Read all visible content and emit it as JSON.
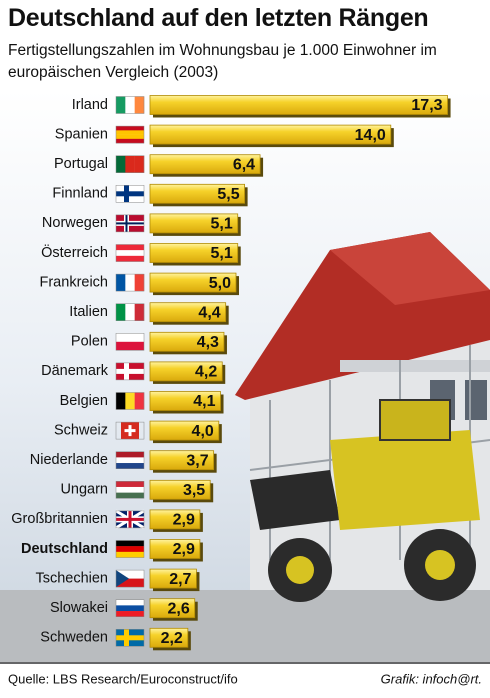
{
  "chart_data": {
    "type": "barh",
    "title": "Deutschland auf den letzten Rängen",
    "subtitle": "Fertigstellungszahlen im Wohnungsbau je 1.000 Einwohner im europäischen Vergleich (2003)",
    "categories": [
      "Irland",
      "Spanien",
      "Portugal",
      "Finnland",
      "Norwegen",
      "Österreich",
      "Frankreich",
      "Italien",
      "Polen",
      "Dänemark",
      "Belgien",
      "Schweiz",
      "Niederlande",
      "Ungarn",
      "Großbritannien",
      "Deutschland",
      "Tschechien",
      "Slowakei",
      "Schweden"
    ],
    "values": [
      17.3,
      14.0,
      6.4,
      5.5,
      5.1,
      5.1,
      5.0,
      4.4,
      4.3,
      4.2,
      4.1,
      4.0,
      3.7,
      3.5,
      2.9,
      2.9,
      2.7,
      2.6,
      2.2
    ],
    "value_labels": [
      "17,3",
      "14,0",
      "6,4",
      "5,5",
      "5,1",
      "5,1",
      "5,0",
      "4,4",
      "4,3",
      "4,2",
      "4,1",
      "4,0",
      "3,7",
      "3,5",
      "2,9",
      "2,9",
      "2,7",
      "2,6",
      "2,2"
    ],
    "color": "#f6d22a",
    "source": "Quelle: LBS Research/Euroconstruct/ifo",
    "credit": "Grafik: infoch@rt."
  }
}
